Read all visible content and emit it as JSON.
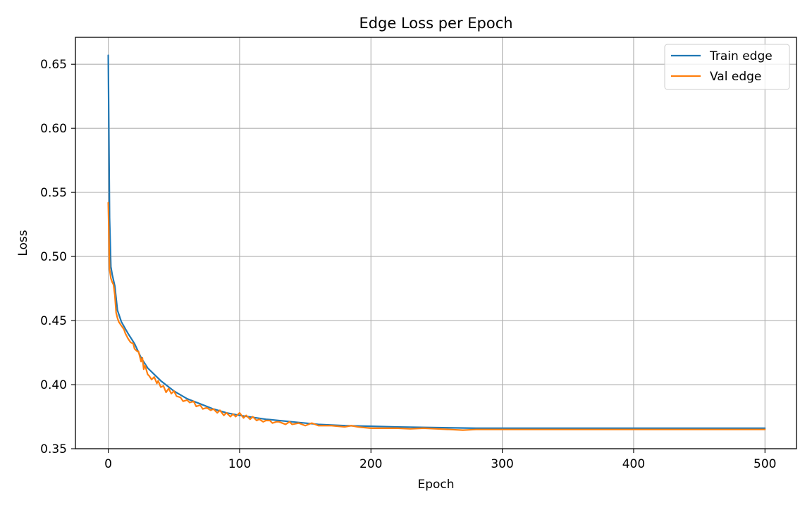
{
  "chart_data": {
    "type": "line",
    "title": "Edge Loss per Epoch",
    "xlabel": "Epoch",
    "ylabel": "Loss",
    "xlim": [
      -25,
      524
    ],
    "ylim": [
      0.35,
      0.671
    ],
    "x_ticks": [
      0,
      100,
      200,
      300,
      400,
      500
    ],
    "y_ticks": [
      0.35,
      0.4,
      0.45,
      0.5,
      0.55,
      0.6,
      0.65
    ],
    "grid": true,
    "legend_position": "top-right",
    "series": [
      {
        "name": "Train edge",
        "color": "#1f77b4",
        "x": [
          0,
          1,
          2,
          3,
          5,
          7,
          10,
          15,
          20,
          25,
          30,
          40,
          50,
          60,
          70,
          80,
          90,
          100,
          120,
          140,
          160,
          180,
          200,
          220,
          250,
          280,
          300,
          350,
          400,
          450,
          500
        ],
        "y": [
          0.657,
          0.53,
          0.492,
          0.486,
          0.477,
          0.458,
          0.449,
          0.44,
          0.432,
          0.421,
          0.413,
          0.403,
          0.395,
          0.389,
          0.385,
          0.381,
          0.378,
          0.376,
          0.373,
          0.371,
          0.369,
          0.368,
          0.3675,
          0.367,
          0.3665,
          0.366,
          0.366,
          0.366,
          0.366,
          0.366,
          0.366
        ]
      },
      {
        "name": "Val edge",
        "color": "#ff7f0e",
        "x": [
          0,
          1,
          2,
          3,
          4,
          5,
          6,
          7,
          8,
          10,
          12,
          13,
          15,
          17,
          19,
          20,
          22,
          23,
          25,
          26,
          27,
          28,
          30,
          31,
          33,
          35,
          37,
          38,
          40,
          42,
          44,
          46,
          48,
          50,
          52,
          55,
          57,
          60,
          62,
          65,
          67,
          70,
          72,
          75,
          78,
          80,
          83,
          85,
          88,
          90,
          93,
          95,
          97,
          100,
          103,
          105,
          108,
          110,
          113,
          115,
          118,
          120,
          123,
          125,
          128,
          130,
          135,
          138,
          140,
          145,
          150,
          155,
          160,
          165,
          170,
          180,
          185,
          190,
          200,
          210,
          220,
          230,
          240,
          250,
          260,
          270,
          280,
          290,
          300,
          350,
          400,
          450,
          500
        ],
        "y": [
          0.542,
          0.49,
          0.483,
          0.48,
          0.478,
          0.47,
          0.456,
          0.452,
          0.449,
          0.446,
          0.443,
          0.44,
          0.436,
          0.433,
          0.432,
          0.428,
          0.426,
          0.426,
          0.418,
          0.421,
          0.412,
          0.415,
          0.408,
          0.407,
          0.404,
          0.406,
          0.401,
          0.403,
          0.398,
          0.399,
          0.394,
          0.397,
          0.393,
          0.395,
          0.391,
          0.39,
          0.387,
          0.388,
          0.386,
          0.387,
          0.383,
          0.384,
          0.381,
          0.382,
          0.38,
          0.381,
          0.378,
          0.38,
          0.376,
          0.378,
          0.375,
          0.377,
          0.375,
          0.378,
          0.374,
          0.376,
          0.373,
          0.375,
          0.372,
          0.373,
          0.371,
          0.372,
          0.372,
          0.37,
          0.371,
          0.371,
          0.369,
          0.371,
          0.369,
          0.37,
          0.368,
          0.37,
          0.368,
          0.368,
          0.368,
          0.367,
          0.368,
          0.367,
          0.366,
          0.366,
          0.366,
          0.3655,
          0.366,
          0.3655,
          0.365,
          0.3645,
          0.365,
          0.365,
          0.365,
          0.365,
          0.365,
          0.365,
          0.365
        ]
      }
    ]
  }
}
